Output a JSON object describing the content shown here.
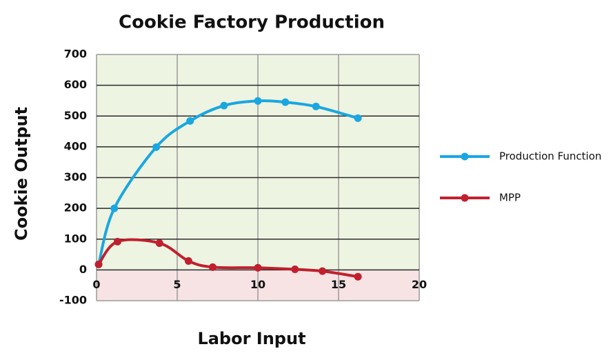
{
  "chart_data": {
    "type": "line",
    "title": "Cookie Factory Production",
    "x_label": "Labor Input",
    "y_label": "Cookie Output",
    "xlim": [
      0,
      20
    ],
    "xticks": [
      0,
      5,
      10,
      15,
      20
    ],
    "ylim": [
      -100,
      700
    ],
    "yticks": [
      -100,
      0,
      100,
      200,
      300,
      400,
      500,
      600,
      700
    ],
    "grid": true,
    "legend": "right",
    "smooth": true,
    "series": [
      {
        "name": "Production Function",
        "color": "#1aa7e0",
        "x": [
          0.13,
          1.1,
          3.7,
          5.8,
          7.9,
          10,
          11.7,
          13.6,
          16.2
        ],
        "values": [
          18,
          200,
          399,
          484,
          534,
          549,
          545,
          531,
          493
        ]
      },
      {
        "name": "MPP",
        "color": "#c0202e",
        "x": [
          0.13,
          1.3,
          3.9,
          5.7,
          7.2,
          10,
          12.3,
          14,
          16.2
        ],
        "values": [
          18,
          92,
          87,
          29,
          9,
          7,
          2,
          -4,
          -22
        ]
      }
    ]
  }
}
